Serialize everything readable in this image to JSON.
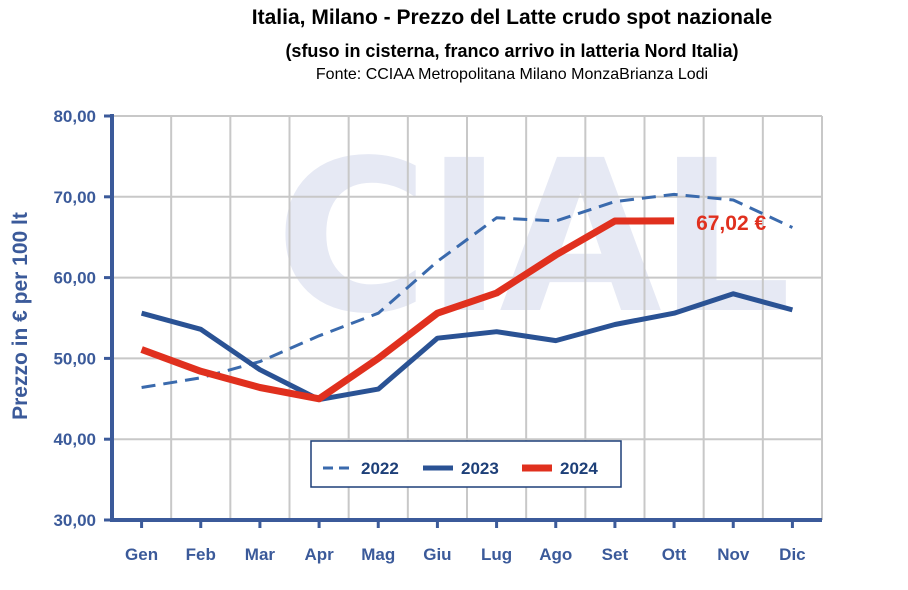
{
  "header": {
    "title": "Italia, Milano - Prezzo del Latte crudo spot nazionale",
    "subtitle": "(sfuso in cisterna, franco arrivo in latteria Nord Italia)",
    "source": "Fonte: CCIAA Metropolitana Milano MonzaBrianza Lodi"
  },
  "watermark": "CIAL",
  "colors": {
    "axis": "#3b5a9a",
    "grid": "#c8c8c8",
    "s2022": "#3a6aad",
    "s2023": "#2a5294",
    "s2024": "#e0301e",
    "watermark": "#e6e9f4"
  },
  "chart_data": {
    "type": "line",
    "title": "Italia, Milano - Prezzo del Latte crudo spot nazionale",
    "ylabel": "Prezzo in € per 100 lt",
    "xlabel": "",
    "categories": [
      "Gen",
      "Feb",
      "Mar",
      "Apr",
      "Mag",
      "Giu",
      "Lug",
      "Ago",
      "Set",
      "Ott",
      "Nov",
      "Dic"
    ],
    "ylim": [
      30,
      80
    ],
    "yticks": [
      30,
      40,
      50,
      60,
      70,
      80
    ],
    "ytick_labels": [
      "30,00",
      "40,00",
      "50,00",
      "60,00",
      "70,00",
      "80,00"
    ],
    "grid": true,
    "legend_position": "bottom-center inside plot",
    "series": [
      {
        "name": "2022",
        "style": "dashed",
        "values": [
          46.4,
          47.6,
          49.6,
          52.8,
          55.6,
          62.0,
          67.4,
          67.0,
          69.4,
          70.3,
          69.6,
          66.2
        ]
      },
      {
        "name": "2023",
        "style": "solid",
        "values": [
          55.6,
          53.6,
          48.6,
          44.9,
          46.2,
          52.5,
          53.3,
          52.2,
          54.2,
          55.6,
          58.0,
          56.0
        ]
      },
      {
        "name": "2024",
        "style": "solid-thick",
        "values": [
          51.1,
          48.4,
          46.4,
          45.0,
          50.0,
          55.6,
          58.1,
          62.8,
          67.0,
          67.02,
          null,
          null
        ]
      }
    ],
    "annotations": [
      {
        "text": "67,02 €",
        "series": "2024",
        "category": "Ott"
      }
    ]
  }
}
